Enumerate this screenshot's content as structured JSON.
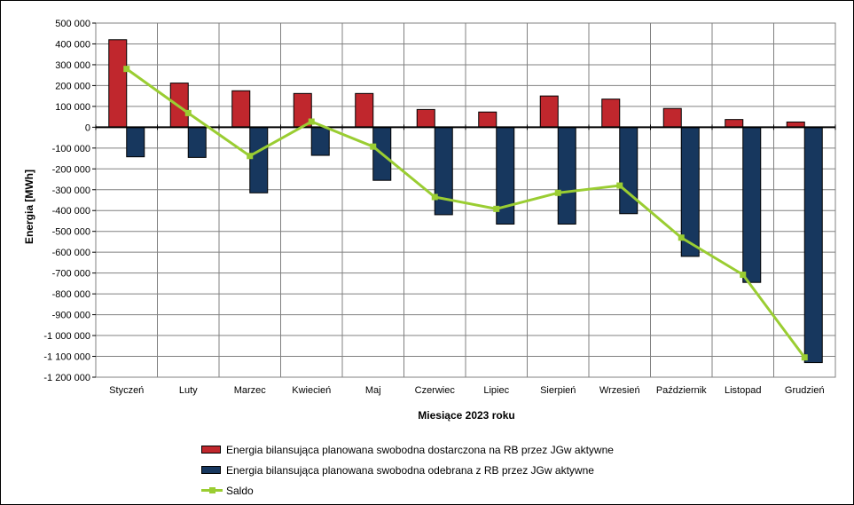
{
  "chart_data": {
    "type": "bar",
    "xlabel": "Miesiące 2023  roku",
    "ylabel": "Energia [MWh]",
    "ylim": [
      -1200000,
      500000
    ],
    "y_tick_step": 100000,
    "grid": true,
    "legend_position": "bottom",
    "categories": [
      "Styczeń",
      "Luty",
      "Marzec",
      "Kwiecień",
      "Maj",
      "Czerwiec",
      "Lipiec",
      "Sierpień",
      "Wrzesień",
      "Październik",
      "Listopad",
      "Grudzień"
    ],
    "y_tick_labels": [
      "500 000",
      "400 000",
      "300 000",
      "200 000",
      "100 000",
      "0",
      "-100 000",
      "-200 000",
      "-300 000",
      "-400 000",
      "-500 000",
      "-600 000",
      "-700 000",
      "-800 000",
      "-900 000",
      "-1 000 000",
      "-1 100 000",
      "-1 200 000"
    ],
    "series": [
      {
        "name": "Energia bilansująca planowana swobodna dostarczona na RB przez JGw aktywne",
        "kind": "bar",
        "color": "#c0272d",
        "values": [
          420000,
          212000,
          175000,
          162000,
          162000,
          85000,
          73000,
          150000,
          135000,
          90000,
          37000,
          25000
        ]
      },
      {
        "name": "Energia bilansująca planowana swobodna odebrana z RB przez JGw aktywne",
        "kind": "bar",
        "color": "#17375e",
        "values": [
          -142000,
          -145000,
          -315000,
          -135000,
          -255000,
          -420000,
          -465000,
          -465000,
          -415000,
          -620000,
          -745000,
          -1130000
        ]
      },
      {
        "name": "Saldo",
        "kind": "line",
        "color": "#9acd32",
        "values": [
          280000,
          68000,
          -138000,
          27000,
          -93000,
          -335000,
          -392000,
          -315000,
          -280000,
          -530000,
          -708000,
          -1105000
        ]
      }
    ]
  }
}
